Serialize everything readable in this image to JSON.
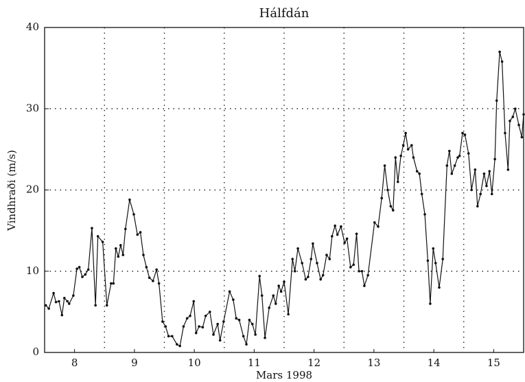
{
  "chart_data": {
    "type": "line",
    "title": "Hálfdán",
    "xlabel": "Mars 1998",
    "ylabel": "Vindhraði (m/s)",
    "x": [
      7.52,
      7.57,
      7.65,
      7.69,
      7.74,
      7.79,
      7.83,
      7.88,
      7.91,
      7.98,
      8.04,
      8.08,
      8.13,
      8.18,
      8.23,
      8.29,
      8.35,
      8.39,
      8.47,
      8.54,
      8.61,
      8.65,
      8.69,
      8.73,
      8.77,
      8.81,
      8.85,
      8.92,
      8.99,
      9.05,
      9.1,
      9.15,
      9.2,
      9.25,
      9.31,
      9.37,
      9.41,
      9.47,
      9.52,
      9.57,
      9.63,
      9.71,
      9.76,
      9.82,
      9.88,
      9.93,
      9.99,
      10.03,
      10.08,
      10.14,
      10.19,
      10.26,
      10.32,
      10.39,
      10.43,
      10.49,
      10.59,
      10.65,
      10.7,
      10.75,
      10.82,
      10.87,
      10.92,
      10.97,
      11.02,
      11.09,
      11.13,
      11.18,
      11.25,
      11.32,
      11.36,
      11.41,
      11.45,
      11.5,
      11.57,
      11.64,
      11.68,
      11.73,
      11.8,
      11.86,
      11.9,
      11.95,
      11.98,
      12.05,
      12.11,
      12.15,
      12.21,
      12.26,
      12.3,
      12.35,
      12.39,
      12.45,
      12.51,
      12.55,
      12.61,
      12.66,
      12.71,
      12.75,
      12.8,
      12.84,
      12.9,
      13.01,
      13.07,
      13.13,
      13.18,
      13.23,
      13.28,
      13.32,
      13.36,
      13.4,
      13.45,
      13.49,
      13.53,
      13.57,
      13.63,
      13.66,
      13.72,
      13.76,
      13.8,
      13.85,
      13.9,
      13.94,
      13.99,
      14.03,
      14.09,
      14.15,
      14.22,
      14.26,
      14.3,
      14.35,
      14.4,
      14.43,
      14.48,
      14.52,
      14.58,
      14.63,
      14.69,
      14.73,
      14.78,
      14.84,
      14.88,
      14.93,
      14.97,
      15.02,
      15.05,
      15.1,
      15.14,
      15.19,
      15.24,
      15.27,
      15.32,
      15.36,
      15.42,
      15.47,
      15.5
    ],
    "values": [
      5.8,
      5.4,
      7.3,
      6.2,
      6.3,
      4.6,
      6.7,
      6.3,
      6.0,
      7.0,
      10.3,
      10.5,
      9.3,
      9.6,
      10.2,
      15.3,
      5.8,
      14.3,
      13.6,
      5.8,
      8.5,
      8.5,
      12.8,
      11.8,
      13.2,
      12.0,
      15.2,
      18.8,
      17.0,
      14.5,
      14.8,
      12.0,
      10.5,
      9.2,
      8.8,
      10.2,
      8.5,
      3.8,
      3.2,
      2.0,
      2.0,
      1.0,
      0.8,
      3.2,
      4.2,
      4.5,
      6.3,
      2.4,
      3.2,
      3.1,
      4.5,
      5.0,
      2.2,
      3.5,
      1.5,
      3.8,
      7.5,
      6.5,
      4.2,
      4.0,
      2.0,
      1.0,
      4.0,
      3.5,
      2.2,
      9.4,
      7.0,
      1.8,
      5.5,
      7.0,
      6.0,
      8.2,
      7.5,
      8.7,
      4.7,
      11.5,
      10.0,
      12.8,
      11.0,
      9.0,
      9.3,
      11.5,
      13.4,
      11.0,
      9.0,
      9.5,
      12.0,
      11.5,
      14.3,
      15.6,
      14.5,
      15.5,
      13.5,
      14.0,
      10.5,
      10.8,
      14.6,
      10.0,
      10.0,
      8.2,
      9.5,
      16.0,
      15.5,
      19.0,
      23.0,
      20.0,
      18.0,
      17.5,
      24.0,
      21.0,
      24.2,
      25.5,
      27.0,
      25.0,
      25.5,
      24.0,
      22.3,
      22.0,
      19.5,
      17.0,
      11.3,
      6.0,
      12.8,
      11.0,
      8.0,
      11.5,
      23.0,
      24.8,
      22.0,
      23.0,
      24.0,
      24.2,
      27.0,
      26.8,
      24.5,
      20.0,
      22.5,
      18.0,
      19.5,
      22.0,
      20.5,
      22.3,
      19.5,
      23.8,
      31.0,
      37.0,
      35.8,
      27.0,
      22.5,
      28.5,
      29.0,
      30.0,
      28.0,
      26.5,
      29.3
    ],
    "color": "#111111",
    "xlim": [
      7.5,
      15.5
    ],
    "xticks": [
      8,
      9,
      10,
      11,
      12,
      13,
      14,
      15
    ],
    "ylim": [
      0,
      40
    ],
    "yticks": [
      0,
      10,
      20,
      30,
      40
    ],
    "grid": true
  }
}
